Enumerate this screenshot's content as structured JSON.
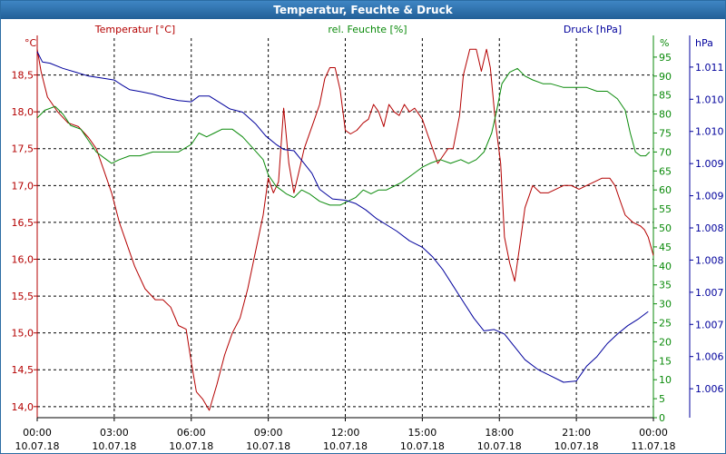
{
  "window": {
    "title": "Temperatur, Feuchte & Druck"
  },
  "colors": {
    "temperature": "#b40000",
    "humidity": "#0a8a0a",
    "pressure": "#00009c",
    "grid": "#000000",
    "titlebar": "#2b6ca3"
  },
  "chart_data": {
    "type": "line",
    "title": "Temperatur, Feuchte & Druck",
    "x_ticks": [
      {
        "hour": 0,
        "time": "00:00",
        "date": "10.07.18"
      },
      {
        "hour": 3,
        "time": "03:00",
        "date": "10.07.18"
      },
      {
        "hour": 6,
        "time": "06:00",
        "date": "10.07.18"
      },
      {
        "hour": 9,
        "time": "09:00",
        "date": "10.07.18"
      },
      {
        "hour": 12,
        "time": "12:00",
        "date": "10.07.18"
      },
      {
        "hour": 15,
        "time": "15:00",
        "date": "10.07.18"
      },
      {
        "hour": 18,
        "time": "18:00",
        "date": "10.07.18"
      },
      {
        "hour": 21,
        "time": "21:00",
        "date": "10.07.18"
      },
      {
        "hour": 24,
        "time": "00:00",
        "date": "11.07.18"
      }
    ],
    "x_range": [
      0,
      24
    ],
    "axes": {
      "temperature": {
        "label": "Temperatur [°C]",
        "unit": "°C",
        "range": [
          13.85,
          19.0
        ],
        "ticks": [
          {
            "v": 18.5,
            "t": "18,5"
          },
          {
            "v": 18.0,
            "t": "18,0"
          },
          {
            "v": 17.5,
            "t": "17,5"
          },
          {
            "v": 17.0,
            "t": "17,0"
          },
          {
            "v": 16.5,
            "t": "16,5"
          },
          {
            "v": 16.0,
            "t": "16,0"
          },
          {
            "v": 15.5,
            "t": "15,5"
          },
          {
            "v": 15.0,
            "t": "15,0"
          },
          {
            "v": 14.5,
            "t": "14,5"
          },
          {
            "v": 14.0,
            "t": "14,0"
          }
        ]
      },
      "humidity": {
        "label": "rel. Feuchte [%]",
        "unit": "%",
        "range": [
          0,
          100
        ],
        "ticks": [
          {
            "v": 95,
            "t": "95"
          },
          {
            "v": 90,
            "t": "90"
          },
          {
            "v": 85,
            "t": "85"
          },
          {
            "v": 80,
            "t": "80"
          },
          {
            "v": 75,
            "t": "75"
          },
          {
            "v": 70,
            "t": "70"
          },
          {
            "v": 65,
            "t": "65"
          },
          {
            "v": 60,
            "t": "60"
          },
          {
            "v": 55,
            "t": "55"
          },
          {
            "v": 50,
            "t": "50"
          },
          {
            "v": 45,
            "t": "45"
          },
          {
            "v": 40,
            "t": "40"
          },
          {
            "v": 35,
            "t": "35"
          },
          {
            "v": 30,
            "t": "30"
          },
          {
            "v": 25,
            "t": "25"
          },
          {
            "v": 20,
            "t": "20"
          },
          {
            "v": 15,
            "t": "15"
          },
          {
            "v": 10,
            "t": "10"
          },
          {
            "v": 5,
            "t": "5"
          },
          {
            "v": 0,
            "t": "0"
          }
        ]
      },
      "pressure": {
        "label": "Druck [hPa]",
        "unit": "hPa",
        "range": [
          1005.55,
          1011.45
        ],
        "ticks": [
          {
            "v": 1011.0,
            "t": "1.011"
          },
          {
            "v": 1010.5,
            "t": "1.010"
          },
          {
            "v": 1010.0,
            "t": "1.010"
          },
          {
            "v": 1009.5,
            "t": "1.009"
          },
          {
            "v": 1009.0,
            "t": "1.009"
          },
          {
            "v": 1008.5,
            "t": "1.008"
          },
          {
            "v": 1008.0,
            "t": "1.008"
          },
          {
            "v": 1007.5,
            "t": "1.007"
          },
          {
            "v": 1007.0,
            "t": "1.007"
          },
          {
            "v": 1006.5,
            "t": "1.006"
          },
          {
            "v": 1006.0,
            "t": "1.006"
          }
        ]
      }
    },
    "series": [
      {
        "name": "Temperatur [°C]",
        "axis": "temperature",
        "color": "#b40000",
        "points": [
          [
            0,
            18.85
          ],
          [
            0.15,
            18.55
          ],
          [
            0.4,
            18.2
          ],
          [
            0.8,
            18.0
          ],
          [
            1.2,
            17.85
          ],
          [
            1.6,
            17.8
          ],
          [
            2.0,
            17.65
          ],
          [
            2.3,
            17.5
          ],
          [
            2.6,
            17.2
          ],
          [
            2.9,
            16.9
          ],
          [
            3.2,
            16.5
          ],
          [
            3.5,
            16.2
          ],
          [
            3.8,
            15.9
          ],
          [
            4.2,
            15.6
          ],
          [
            4.6,
            15.45
          ],
          [
            4.9,
            15.45
          ],
          [
            5.2,
            15.35
          ],
          [
            5.5,
            15.1
          ],
          [
            5.8,
            15.05
          ],
          [
            6.0,
            14.6
          ],
          [
            6.2,
            14.2
          ],
          [
            6.45,
            14.1
          ],
          [
            6.7,
            13.95
          ],
          [
            7.0,
            14.3
          ],
          [
            7.3,
            14.7
          ],
          [
            7.6,
            15.0
          ],
          [
            7.9,
            15.2
          ],
          [
            8.2,
            15.6
          ],
          [
            8.5,
            16.1
          ],
          [
            8.8,
            16.6
          ],
          [
            9.0,
            17.1
          ],
          [
            9.2,
            16.9
          ],
          [
            9.4,
            17.05
          ],
          [
            9.6,
            18.05
          ],
          [
            9.8,
            17.3
          ],
          [
            10.0,
            16.9
          ],
          [
            10.2,
            17.2
          ],
          [
            10.4,
            17.5
          ],
          [
            10.8,
            17.9
          ],
          [
            11.0,
            18.1
          ],
          [
            11.2,
            18.45
          ],
          [
            11.4,
            18.6
          ],
          [
            11.6,
            18.6
          ],
          [
            11.8,
            18.3
          ],
          [
            12.0,
            17.75
          ],
          [
            12.2,
            17.7
          ],
          [
            12.45,
            17.75
          ],
          [
            12.7,
            17.85
          ],
          [
            12.9,
            17.9
          ],
          [
            13.1,
            18.1
          ],
          [
            13.3,
            18.0
          ],
          [
            13.5,
            17.8
          ],
          [
            13.7,
            18.1
          ],
          [
            13.9,
            18.0
          ],
          [
            14.1,
            17.95
          ],
          [
            14.3,
            18.1
          ],
          [
            14.5,
            18.0
          ],
          [
            14.7,
            18.05
          ],
          [
            15.0,
            17.9
          ],
          [
            15.2,
            17.7
          ],
          [
            15.4,
            17.5
          ],
          [
            15.6,
            17.3
          ],
          [
            15.8,
            17.4
          ],
          [
            16.0,
            17.5
          ],
          [
            16.2,
            17.5
          ],
          [
            16.45,
            17.95
          ],
          [
            16.6,
            18.5
          ],
          [
            16.85,
            18.85
          ],
          [
            17.1,
            18.85
          ],
          [
            17.3,
            18.55
          ],
          [
            17.5,
            18.85
          ],
          [
            17.65,
            18.6
          ],
          [
            17.85,
            17.85
          ],
          [
            18.05,
            17.3
          ],
          [
            18.2,
            16.3
          ],
          [
            18.4,
            15.95
          ],
          [
            18.6,
            15.7
          ],
          [
            18.8,
            16.2
          ],
          [
            19.0,
            16.7
          ],
          [
            19.3,
            17.0
          ],
          [
            19.6,
            16.9
          ],
          [
            19.9,
            16.9
          ],
          [
            20.2,
            16.95
          ],
          [
            20.5,
            17.0
          ],
          [
            20.8,
            17.0
          ],
          [
            21.1,
            16.95
          ],
          [
            21.4,
            17.0
          ],
          [
            21.7,
            17.05
          ],
          [
            22.0,
            17.1
          ],
          [
            22.3,
            17.1
          ],
          [
            22.5,
            17.0
          ],
          [
            22.7,
            16.8
          ],
          [
            22.9,
            16.6
          ],
          [
            23.2,
            16.5
          ],
          [
            23.5,
            16.45
          ],
          [
            23.65,
            16.4
          ],
          [
            23.8,
            16.3
          ],
          [
            24.0,
            16.05
          ]
        ]
      },
      {
        "name": "rel. Feuchte [%]",
        "axis": "humidity",
        "color": "#0a8a0a",
        "points": [
          [
            0,
            79
          ],
          [
            0.3,
            81
          ],
          [
            0.7,
            82
          ],
          [
            1.0,
            80
          ],
          [
            1.3,
            77
          ],
          [
            1.7,
            76
          ],
          [
            2.0,
            73
          ],
          [
            2.3,
            70
          ],
          [
            2.7,
            68
          ],
          [
            2.9,
            67
          ],
          [
            3.2,
            68
          ],
          [
            3.6,
            69
          ],
          [
            4.0,
            69
          ],
          [
            4.5,
            70
          ],
          [
            5.0,
            70
          ],
          [
            5.5,
            70
          ],
          [
            6.0,
            72
          ],
          [
            6.3,
            75
          ],
          [
            6.6,
            74
          ],
          [
            6.9,
            75
          ],
          [
            7.2,
            76
          ],
          [
            7.6,
            76
          ],
          [
            8.0,
            74
          ],
          [
            8.4,
            71
          ],
          [
            8.8,
            68
          ],
          [
            9.0,
            64
          ],
          [
            9.3,
            61
          ],
          [
            9.5,
            60
          ],
          [
            9.7,
            59
          ],
          [
            10.0,
            58
          ],
          [
            10.3,
            60
          ],
          [
            10.6,
            59
          ],
          [
            11.0,
            57
          ],
          [
            11.4,
            56
          ],
          [
            11.8,
            56
          ],
          [
            12.1,
            57
          ],
          [
            12.4,
            58
          ],
          [
            12.7,
            60
          ],
          [
            13.0,
            59
          ],
          [
            13.3,
            60
          ],
          [
            13.6,
            60
          ],
          [
            13.9,
            61
          ],
          [
            14.2,
            62
          ],
          [
            14.6,
            64
          ],
          [
            15.0,
            66
          ],
          [
            15.3,
            67
          ],
          [
            15.7,
            68
          ],
          [
            16.1,
            67
          ],
          [
            16.5,
            68
          ],
          [
            16.8,
            67
          ],
          [
            17.1,
            68
          ],
          [
            17.4,
            70
          ],
          [
            17.7,
            75
          ],
          [
            17.9,
            81
          ],
          [
            18.1,
            88
          ],
          [
            18.4,
            91
          ],
          [
            18.7,
            92
          ],
          [
            19.0,
            90
          ],
          [
            19.3,
            89
          ],
          [
            19.7,
            88
          ],
          [
            20.0,
            88
          ],
          [
            20.5,
            87
          ],
          [
            21.0,
            87
          ],
          [
            21.4,
            87
          ],
          [
            21.8,
            86
          ],
          [
            22.2,
            86
          ],
          [
            22.6,
            84
          ],
          [
            22.9,
            81
          ],
          [
            23.1,
            75
          ],
          [
            23.3,
            70
          ],
          [
            23.5,
            69
          ],
          [
            23.7,
            69
          ],
          [
            23.85,
            70
          ]
        ]
      },
      {
        "name": "Druck [hPa]",
        "axis": "pressure",
        "color": "#00009c",
        "points": [
          [
            0,
            1011.24
          ],
          [
            0.2,
            1011.08
          ],
          [
            0.5,
            1011.06
          ],
          [
            1.0,
            1010.98
          ],
          [
            1.5,
            1010.92
          ],
          [
            2.0,
            1010.86
          ],
          [
            2.5,
            1010.83
          ],
          [
            3.0,
            1010.8
          ],
          [
            3.3,
            1010.72
          ],
          [
            3.6,
            1010.65
          ],
          [
            4.0,
            1010.62
          ],
          [
            4.5,
            1010.58
          ],
          [
            5.0,
            1010.52
          ],
          [
            5.5,
            1010.48
          ],
          [
            6.0,
            1010.46
          ],
          [
            6.3,
            1010.55
          ],
          [
            6.7,
            1010.55
          ],
          [
            7.1,
            1010.45
          ],
          [
            7.5,
            1010.35
          ],
          [
            8.0,
            1010.3
          ],
          [
            8.5,
            1010.12
          ],
          [
            8.9,
            1009.93
          ],
          [
            9.3,
            1009.8
          ],
          [
            9.6,
            1009.72
          ],
          [
            10.0,
            1009.7
          ],
          [
            10.3,
            1009.55
          ],
          [
            10.7,
            1009.35
          ],
          [
            11.0,
            1009.1
          ],
          [
            11.5,
            1008.95
          ],
          [
            12.0,
            1008.93
          ],
          [
            12.4,
            1008.88
          ],
          [
            12.8,
            1008.78
          ],
          [
            13.2,
            1008.65
          ],
          [
            13.6,
            1008.55
          ],
          [
            14.0,
            1008.45
          ],
          [
            14.5,
            1008.3
          ],
          [
            15.0,
            1008.2
          ],
          [
            15.4,
            1008.05
          ],
          [
            15.8,
            1007.85
          ],
          [
            16.2,
            1007.6
          ],
          [
            16.6,
            1007.35
          ],
          [
            17.0,
            1007.1
          ],
          [
            17.4,
            1006.9
          ],
          [
            17.8,
            1006.92
          ],
          [
            18.2,
            1006.85
          ],
          [
            18.6,
            1006.65
          ],
          [
            19.0,
            1006.45
          ],
          [
            19.5,
            1006.3
          ],
          [
            20.0,
            1006.2
          ],
          [
            20.5,
            1006.1
          ],
          [
            21.0,
            1006.12
          ],
          [
            21.4,
            1006.35
          ],
          [
            21.8,
            1006.5
          ],
          [
            22.2,
            1006.7
          ],
          [
            22.6,
            1006.85
          ],
          [
            23.0,
            1006.98
          ],
          [
            23.4,
            1007.08
          ],
          [
            23.8,
            1007.2
          ]
        ]
      }
    ]
  }
}
